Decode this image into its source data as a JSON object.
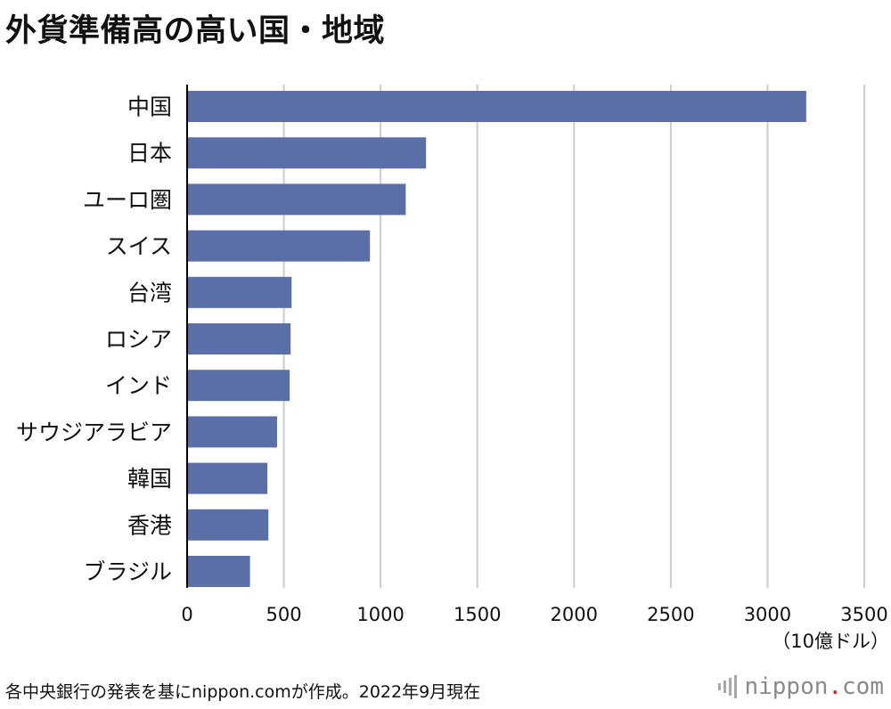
{
  "title": "外貨準備高の高い国・地域",
  "source_note": "各中央銀行の発表を基にnippon.comが作成。2022年9月現在",
  "brand": {
    "name": "nippon",
    "dot": ".",
    "tld": "com"
  },
  "colors": {
    "bar": "#5a6ea8",
    "grid": "#cccccc",
    "axis": "#000000"
  },
  "chart_data": {
    "type": "bar",
    "orientation": "horizontal",
    "unit": "（10億ドル）",
    "categories": [
      "中国",
      "日本",
      "ユーロ圏",
      "スイス",
      "台湾",
      "ロシア",
      "インド",
      "サウジアラビア",
      "韓国",
      "香港",
      "ブラジル"
    ],
    "values": [
      3200,
      1235,
      1130,
      945,
      540,
      535,
      530,
      465,
      415,
      420,
      325
    ],
    "xlim": [
      0,
      3500
    ],
    "xticks": [
      0,
      500,
      1000,
      1500,
      2000,
      2500,
      3000,
      3500
    ],
    "grid": true,
    "legend": "none"
  }
}
